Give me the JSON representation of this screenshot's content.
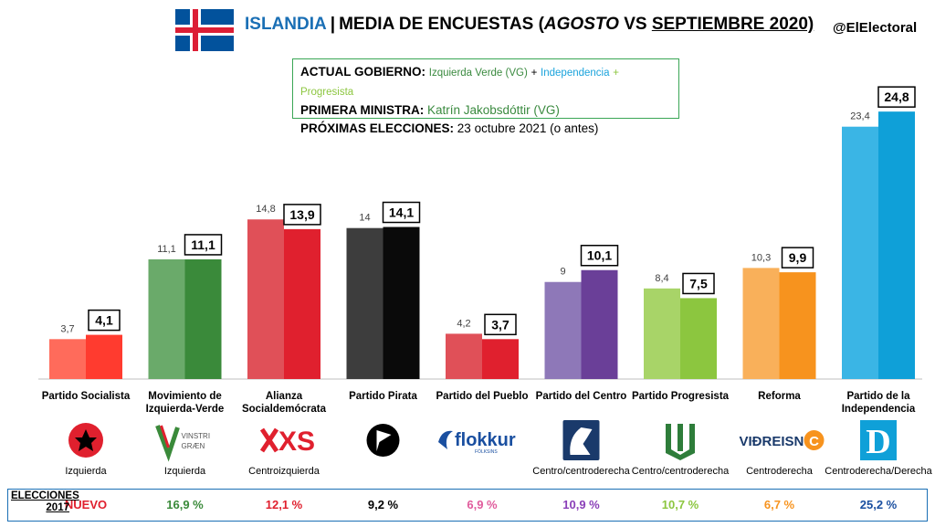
{
  "header": {
    "country": "ISLANDIA",
    "sep": "|",
    "title_pre": "MEDIA DE ENCUESTAS (",
    "title_month1": "AGOSTO",
    "title_vs": " VS ",
    "title_month2": "SEPTIEMBRE 2020)",
    "handle": "@ElElectoral"
  },
  "info": {
    "gov_label": "ACTUAL GOBIERNO:",
    "gov_vg": "Izquierda Verde (VG)",
    "plus1": "+",
    "gov_ind": "Independencia",
    "plus2": "+",
    "gov_prog": "Progresista",
    "pm_label": "PRIMERA MINISTRA:",
    "pm_value": "Katrín Jakobsdóttir (VG)",
    "elec_label": "PRÓXIMAS ELECCIONES:",
    "elec_value": "23 octubre 2021 (o antes)"
  },
  "chart_data": {
    "type": "bar",
    "categories": [
      "Partido Socialista",
      "Movimiento de Izquierda-Verde",
      "Alianza Socialdemócrata",
      "Partido Pirata",
      "Partido del Pueblo",
      "Partido del Centro",
      "Partido Progresista",
      "Reforma",
      "Partido de la Independencia"
    ],
    "series": [
      {
        "values": [
          3.7,
          11.1,
          14.8,
          14,
          4.2,
          9,
          8.4,
          10.3,
          23.4
        ],
        "labels": [
          "3,7",
          "11,1",
          "14,8",
          "14",
          "4,2",
          "9",
          "8,4",
          "10,3",
          "23,4"
        ]
      },
      {
        "values": [
          4.1,
          11.1,
          13.9,
          14.1,
          3.7,
          10.1,
          7.5,
          9.9,
          24.8
        ],
        "labels": [
          "4,1",
          "11,1",
          "13,9",
          "14,1",
          "3,7",
          "10,1",
          "7,5",
          "9,9",
          "24,8"
        ]
      }
    ],
    "colors_aug": [
      "#ff6b5b",
      "#6aaa6a",
      "#e05058",
      "#3d3d3d",
      "#e05058",
      "#8e78b8",
      "#a8d468",
      "#f9b05a",
      "#3ab5e5"
    ],
    "colors_sep": [
      "#ff3b2f",
      "#3a8a3a",
      "#e0202e",
      "#0a0a0a",
      "#e0202e",
      "#6a3f98",
      "#8cc63f",
      "#f7931e",
      "#0fa0d8"
    ],
    "ylim": [
      0,
      26
    ]
  },
  "parties": [
    {
      "name": "Partido Socialista",
      "ideology": "Izquierda",
      "logo": "star-icon",
      "election": "NUEVO",
      "election_color": "#e0202e"
    },
    {
      "name_lines": [
        "Movimiento de",
        "Izquierda-Verde"
      ],
      "ideology": "Izquierda",
      "logo": "vinstri-graen-logo",
      "logo_text1": "VINSTRI",
      "logo_text2": "GRÆN",
      "election": "16,9 %",
      "election_color": "#3a8a3a"
    },
    {
      "name_lines": [
        "Alianza",
        "Socialdemócrata"
      ],
      "ideology": "Centroizquierda",
      "logo": "xs-logo",
      "logo_text": "XS",
      "election": "12,1 %",
      "election_color": "#e0202e"
    },
    {
      "name": "Partido Pirata",
      "ideology": "",
      "logo": "pirate-flag-icon",
      "election": "9,2 %",
      "election_color": "#000000"
    },
    {
      "name": "Partido del Pueblo",
      "ideology": "",
      "logo": "flokkur-logo",
      "logo_text": "flokkur",
      "logo_sub": "FÓLKSINS",
      "election": "6,9 %",
      "election_color": "#e05b9c"
    },
    {
      "name": "Partido del Centro",
      "ideology": "Centro/centroderecha",
      "logo": "horse-icon",
      "election": "10,9 %",
      "election_color": "#8a3fb8"
    },
    {
      "name": "Partido Progresista",
      "ideology": "Centro/centroderecha",
      "logo": "book-icon",
      "election": "10,7 %",
      "election_color": "#8cc63f"
    },
    {
      "name": "Reforma",
      "ideology": "Centroderecha",
      "logo": "vidreisn-logo",
      "logo_text": "VIÐREISN",
      "logo_c": "C",
      "election": "6,7 %",
      "election_color": "#f7931e"
    },
    {
      "name_lines": [
        "Partido de la",
        "Independencia"
      ],
      "ideology": "Centroderecha/Derecha",
      "logo": "d-logo",
      "logo_text": "D",
      "election": "25,2 %",
      "election_color": "#1a4fa0"
    }
  ],
  "elections": {
    "label1": "ELECCIONES",
    "label2": "2017"
  }
}
